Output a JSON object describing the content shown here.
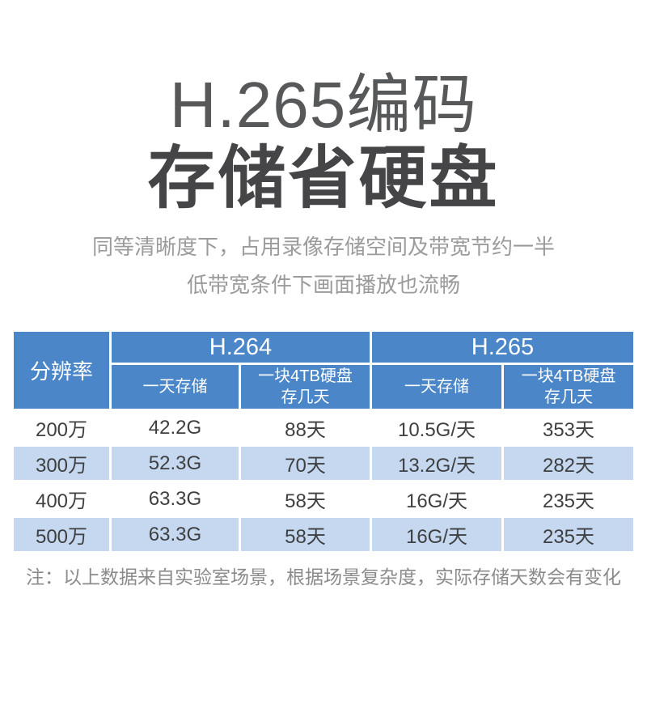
{
  "header": {
    "title_line1": "H.265编码",
    "title_line2": "存储省硬盘",
    "description_line1": "同等清晰度下，占用录像存储空间及带宽节约一半",
    "description_line2": "低带宽条件下画面播放也流畅"
  },
  "table": {
    "resolution_header": "分辨率",
    "h264_label": "H.264",
    "h265_label": "H.265",
    "daily_storage_label": "一天存储",
    "tb_disk_label_line1": "一块4TB硬盘",
    "tb_disk_label_line2": "存几天",
    "rows": [
      {
        "resolution": "200万",
        "h264_daily": "42.2G",
        "h264_4tb_days": "88天",
        "h265_daily": "10.5G/天",
        "h265_4tb_days": "353天"
      },
      {
        "resolution": "300万",
        "h264_daily": "52.3G",
        "h264_4tb_days": "70天",
        "h265_daily": "13.2G/天",
        "h265_4tb_days": "282天"
      },
      {
        "resolution": "400万",
        "h264_daily": "63.3G",
        "h264_4tb_days": "58天",
        "h265_daily": "16G/天",
        "h265_4tb_days": "235天"
      },
      {
        "resolution": "500万",
        "h264_daily": "63.3G",
        "h264_4tb_days": "58天",
        "h265_daily": "16G/天",
        "h265_4tb_days": "235天"
      }
    ]
  },
  "footnote": {
    "text": "注：以上数据来自实验室场景，根据场景复杂度，实际存储天数会有变化"
  },
  "colors": {
    "table_header_blue": "#4a86c8",
    "row_alt_blue": "#c5d8ef",
    "title_color": "#57585a",
    "subtitle_color": "#454547",
    "description_gray": "#9b9b9b",
    "data_text_color": "#3e3f41",
    "footnote_gray": "#8b8b8b",
    "header_text": "#ffffff"
  },
  "chart_data": {
    "type": "table",
    "title": "H.265编码 存储省硬盘",
    "columns": [
      "分辨率",
      "H.264 一天存储",
      "H.264 一块4TB硬盘存几天",
      "H.265 一天存储",
      "H.265 一块4TB硬盘存几天"
    ],
    "rows": [
      [
        "200万",
        "42.2G",
        "88天",
        "10.5G/天",
        "353天"
      ],
      [
        "300万",
        "52.3G",
        "70天",
        "13.2G/天",
        "282天"
      ],
      [
        "400万",
        "63.3G",
        "58天",
        "16G/天",
        "235天"
      ],
      [
        "500万",
        "63.3G",
        "58天",
        "16G/天",
        "235天"
      ]
    ],
    "notes": "注：以上数据来自实验室场景，根据场景复杂度，实际存储天数会有变化"
  }
}
